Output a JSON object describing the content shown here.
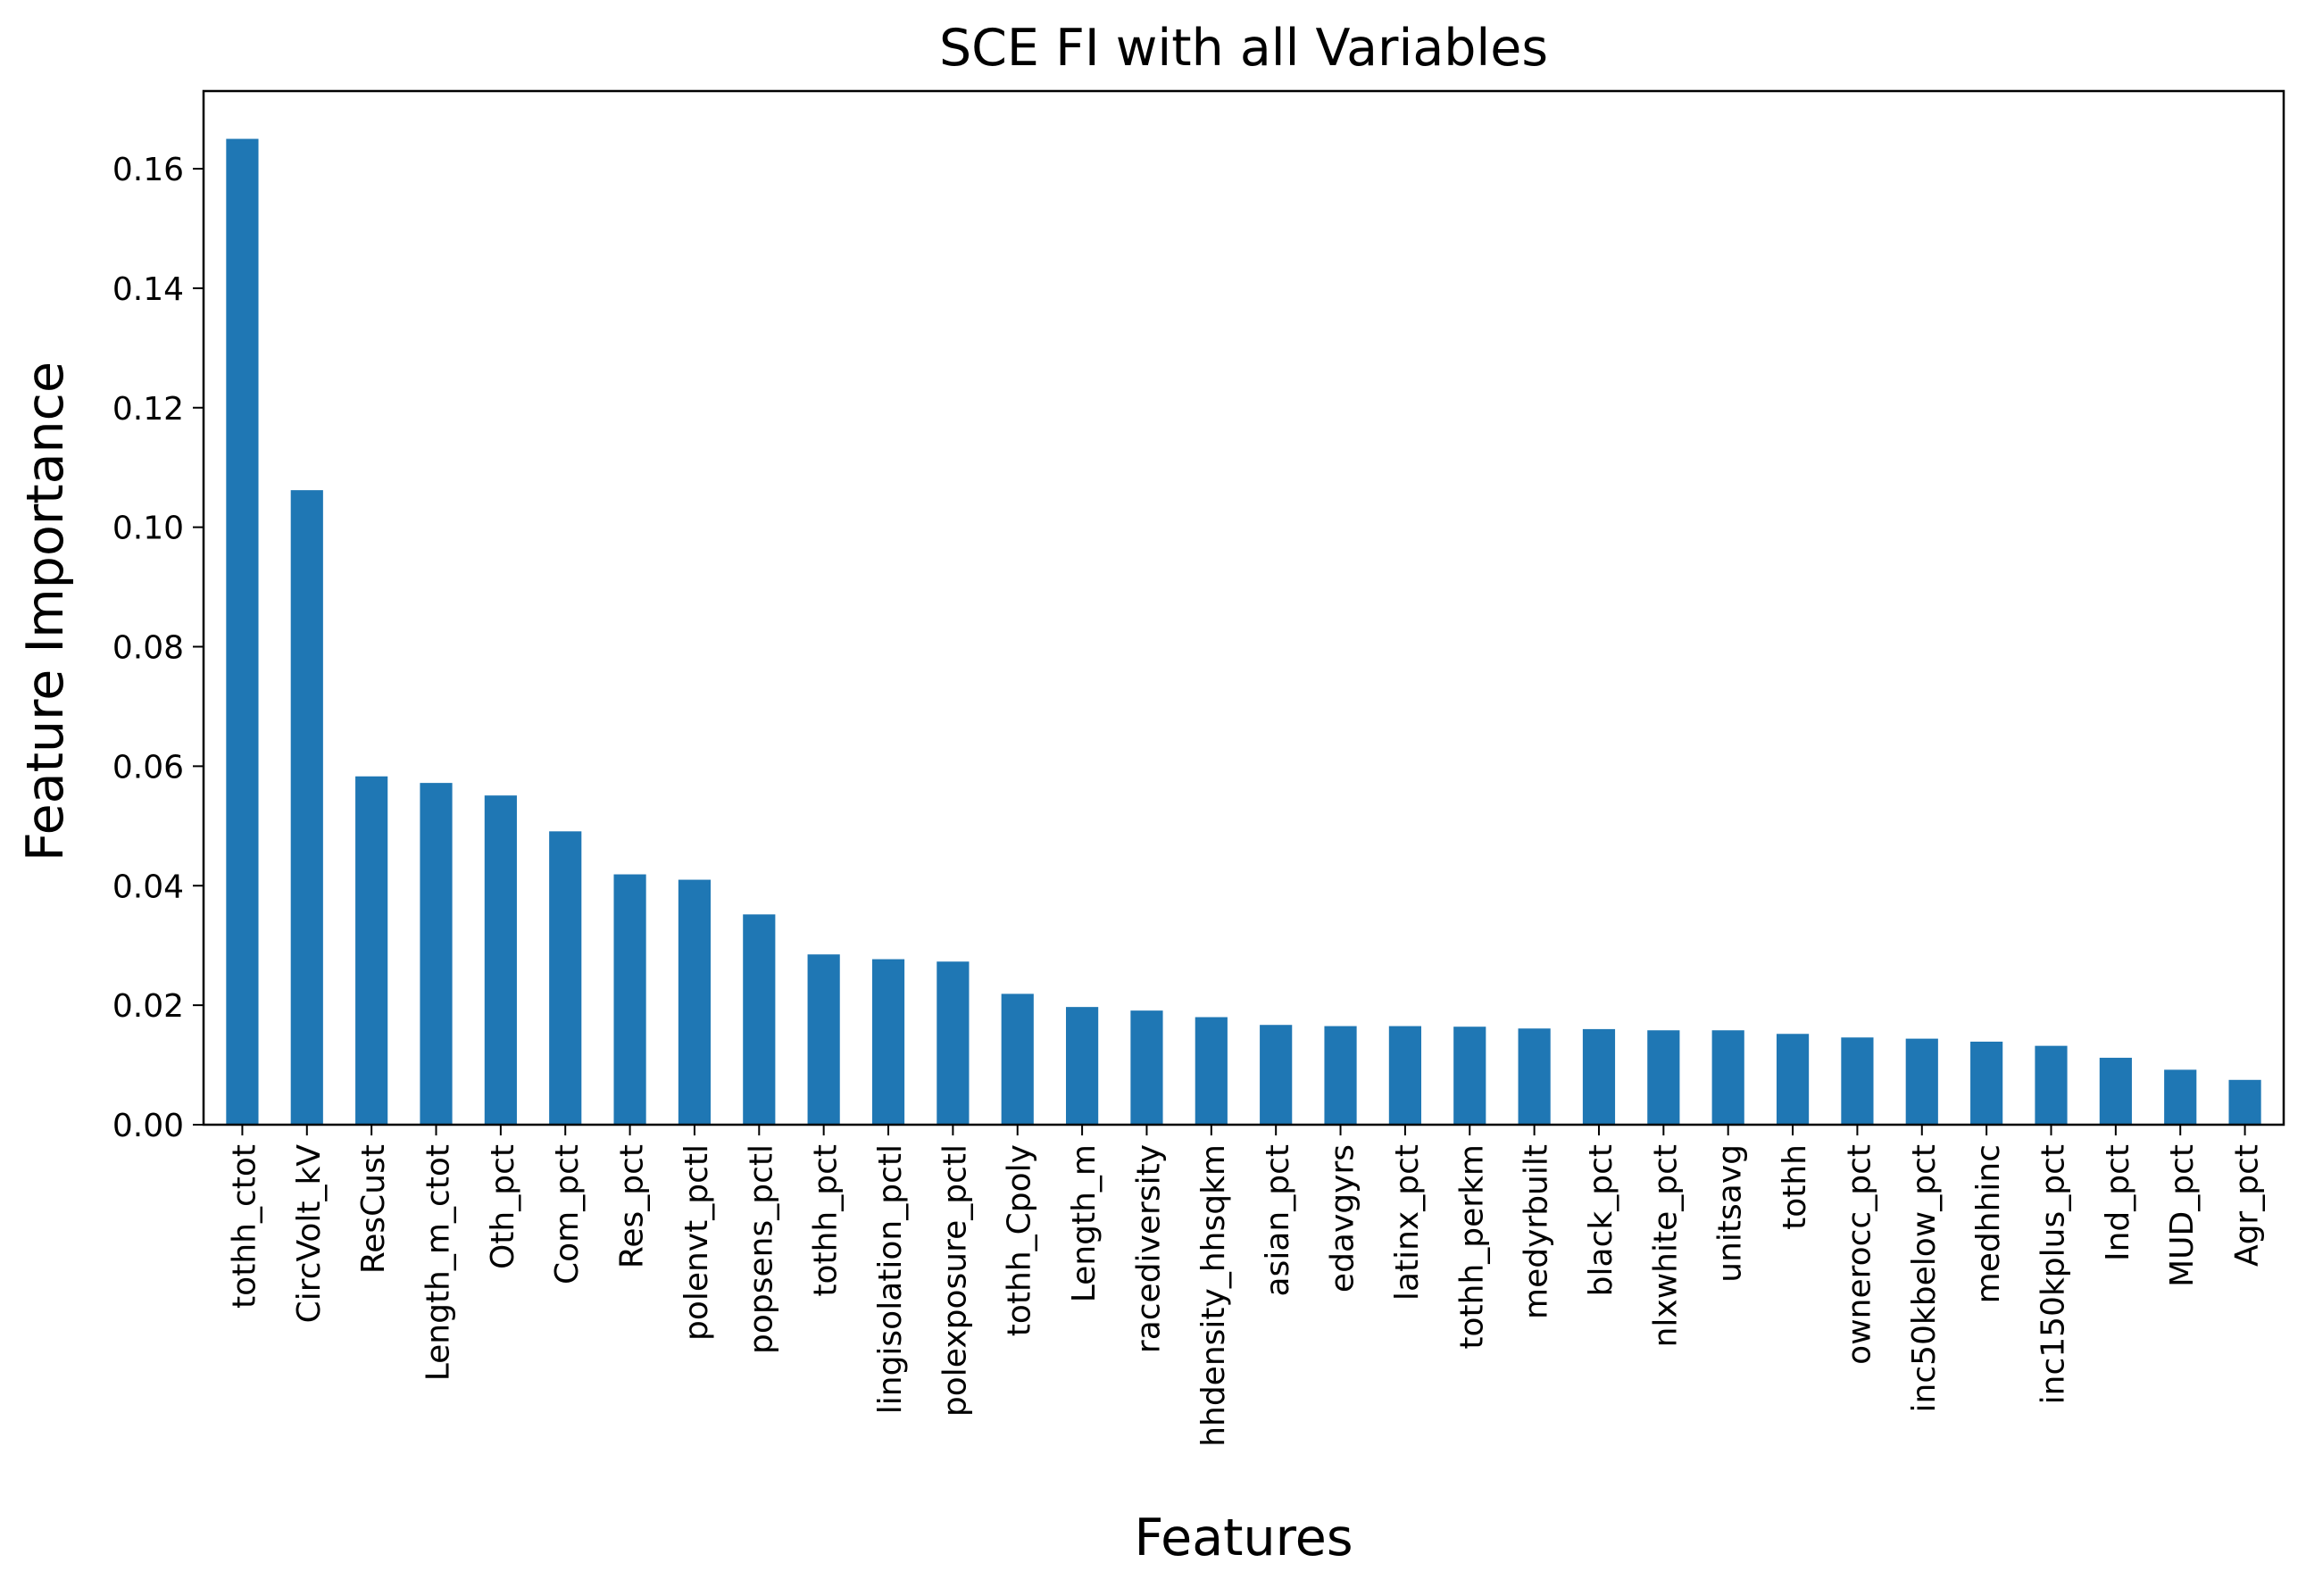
{
  "chart_data": {
    "type": "bar",
    "title": "SCE FI with all Variables",
    "xlabel": "Features",
    "ylabel": "Feature Importance",
    "ylim": [
      0,
      0.173
    ],
    "yticks": [
      "0.00",
      "0.02",
      "0.04",
      "0.06",
      "0.08",
      "0.10",
      "0.12",
      "0.14",
      "0.16"
    ],
    "bar_color": "#1f77b4",
    "grid": false,
    "legend": "none",
    "categories": [
      "tothh_ctot",
      "CircVolt_kV",
      "ResCust",
      "Length_m_ctot",
      "Oth_pct",
      "Com_pct",
      "Res_pct",
      "polenvt_pctl",
      "popsens_pctl",
      "tothh_pct",
      "lingisolation_pctl",
      "polexposure_pctl",
      "tothh_Cpoly",
      "Length_m",
      "racediversity",
      "hhdensity_hhsqkm",
      "asian_pct",
      "edavgyrs",
      "latinx_pct",
      "tothh_perkm",
      "medyrbuilt",
      "black_pct",
      "nlxwhite_pct",
      "unitsavg",
      "tothh",
      "ownerocc_pct",
      "inc50kbelow_pct",
      "medhhinc",
      "inc150kplus_pct",
      "Ind_pct",
      "MUD_pct",
      "Agr_pct"
    ],
    "values": [
      0.165,
      0.1062,
      0.0583,
      0.0572,
      0.0551,
      0.0491,
      0.0419,
      0.041,
      0.0352,
      0.0285,
      0.0277,
      0.0273,
      0.0219,
      0.0197,
      0.0191,
      0.018,
      0.0167,
      0.0165,
      0.0165,
      0.0164,
      0.0161,
      0.016,
      0.0158,
      0.0158,
      0.0152,
      0.0146,
      0.0144,
      0.0139,
      0.0132,
      0.0112,
      0.0092,
      0.0075
    ]
  }
}
